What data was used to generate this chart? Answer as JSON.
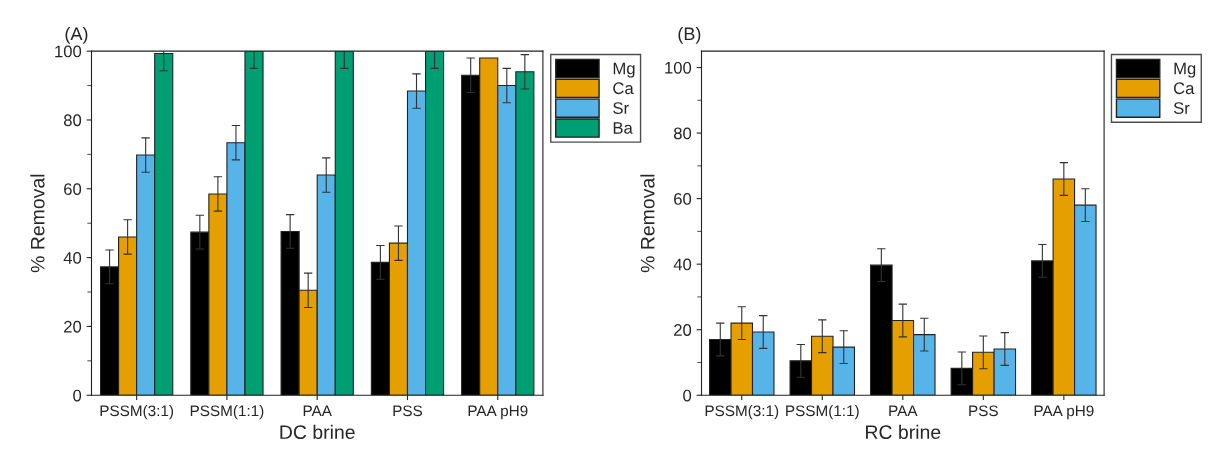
{
  "chart_data": [
    {
      "type": "bar",
      "title": "(A)",
      "xlabel": "DC brine",
      "ylabel": "% Removal",
      "categories": [
        "PSSM(3:1)",
        "PSSM(1:1)",
        "PAA",
        "PSS",
        "PAA pH9"
      ],
      "ylim": [
        0,
        100
      ],
      "yticks": [
        0,
        20,
        40,
        60,
        80,
        100
      ],
      "grid": false,
      "legend": "top right",
      "series": [
        {
          "name": "Mg",
          "color": "#000000",
          "values": [
            37.3,
            47.4,
            47.6,
            38.6,
            93
          ],
          "errors": [
            4.9,
            4.9,
            4.9,
            4.9,
            5
          ]
        },
        {
          "name": "Ca",
          "color": "#e69f00",
          "values": [
            46,
            58.5,
            30.5,
            44.2,
            98
          ],
          "errors": [
            5,
            5,
            5,
            5,
            null
          ]
        },
        {
          "name": "Sr",
          "color": "#56b4e9",
          "values": [
            69.8,
            73.4,
            64,
            88.4,
            90
          ],
          "errors": [
            5,
            5,
            5,
            5,
            5
          ]
        },
        {
          "name": "Ba",
          "color": "#009e73",
          "values": [
            99.3,
            100,
            100,
            100,
            94
          ],
          "errors": [
            5,
            5,
            5,
            5,
            5
          ]
        }
      ]
    },
    {
      "type": "bar",
      "title": "(B)",
      "xlabel": "RC brine",
      "ylabel": "% Removal",
      "categories": [
        "PSSM(3:1)",
        "PSSM(1:1)",
        "PAA",
        "PSS",
        "PAA pH9"
      ],
      "ylim": [
        0,
        105
      ],
      "yticks": [
        0,
        20,
        40,
        60,
        80,
        100
      ],
      "grid": false,
      "legend": "top right",
      "series": [
        {
          "name": "Mg",
          "color": "#000000",
          "values": [
            17,
            10.5,
            39.7,
            8.2,
            41
          ],
          "errors": [
            5,
            5,
            5,
            5,
            5
          ]
        },
        {
          "name": "Ca",
          "color": "#e69f00",
          "values": [
            22,
            18,
            22.8,
            13.1,
            66
          ],
          "errors": [
            5,
            5,
            5,
            5,
            5
          ]
        },
        {
          "name": "Sr",
          "color": "#56b4e9",
          "values": [
            19.3,
            14.7,
            18.5,
            14.1,
            58
          ],
          "errors": [
            5,
            5,
            5,
            5,
            5
          ]
        }
      ]
    }
  ]
}
